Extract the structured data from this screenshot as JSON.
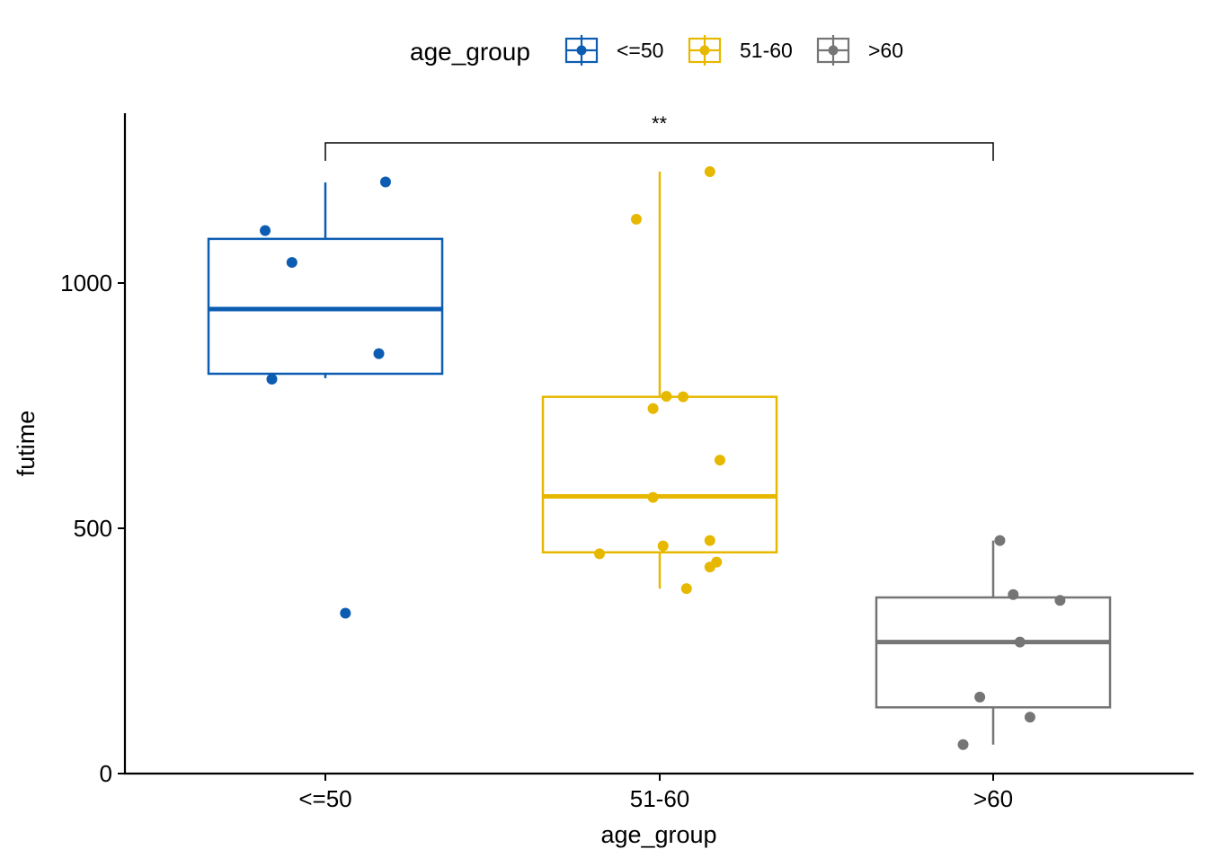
{
  "chart_data": {
    "type": "boxplot",
    "xlabel": "age_group",
    "ylabel": "futime",
    "categories": [
      "<=50",
      "51-60",
      ">60"
    ],
    "ylim": [
      0,
      1300
    ],
    "y_ticks": [
      0,
      500,
      1000
    ],
    "y_tick_labels": [
      "0",
      "500",
      "1000"
    ],
    "grid": false,
    "legend": {
      "title": "age_group",
      "position": "top",
      "entries": [
        "<=50",
        "51-60",
        ">60"
      ]
    },
    "series": [
      {
        "name": "<=50",
        "color": "#0C5DB1",
        "box": {
          "q1": 815,
          "median": 947,
          "q3": 1090,
          "whisker_low": 806,
          "whisker_high": 1205
        },
        "points": [
          {
            "x_offset": -0.18,
            "y": 1107
          },
          {
            "x_offset": -0.1,
            "y": 1042
          },
          {
            "x_offset": 0.18,
            "y": 1206
          },
          {
            "x_offset": 0.16,
            "y": 856
          },
          {
            "x_offset": -0.16,
            "y": 804
          },
          {
            "x_offset": 0.06,
            "y": 327
          }
        ]
      },
      {
        "name": "51-60",
        "color": "#E7B800",
        "box": {
          "q1": 451,
          "median": 565,
          "q3": 768,
          "whisker_low": 377,
          "whisker_high": 1227
        },
        "points": [
          {
            "x_offset": 0.15,
            "y": 1227
          },
          {
            "x_offset": -0.07,
            "y": 1130
          },
          {
            "x_offset": 0.02,
            "y": 769
          },
          {
            "x_offset": 0.07,
            "y": 768
          },
          {
            "x_offset": -0.02,
            "y": 744
          },
          {
            "x_offset": 0.18,
            "y": 639
          },
          {
            "x_offset": -0.02,
            "y": 563
          },
          {
            "x_offset": 0.01,
            "y": 464
          },
          {
            "x_offset": -0.18,
            "y": 448
          },
          {
            "x_offset": 0.15,
            "y": 475
          },
          {
            "x_offset": 0.17,
            "y": 431
          },
          {
            "x_offset": 0.15,
            "y": 421
          },
          {
            "x_offset": 0.08,
            "y": 377
          }
        ]
      },
      {
        "name": ">60",
        "color": "#757575",
        "box": {
          "q1": 135,
          "median": 268,
          "q3": 359,
          "whisker_low": 59,
          "whisker_high": 475
        },
        "points": [
          {
            "x_offset": 0.02,
            "y": 475
          },
          {
            "x_offset": 0.06,
            "y": 365
          },
          {
            "x_offset": 0.2,
            "y": 353
          },
          {
            "x_offset": 0.08,
            "y": 268
          },
          {
            "x_offset": -0.04,
            "y": 156
          },
          {
            "x_offset": 0.11,
            "y": 115
          },
          {
            "x_offset": -0.09,
            "y": 59
          }
        ]
      }
    ],
    "annotations": [
      {
        "type": "significance_bracket",
        "from": "<=50",
        "to": ">60",
        "y": 1285,
        "label": "**"
      }
    ]
  }
}
